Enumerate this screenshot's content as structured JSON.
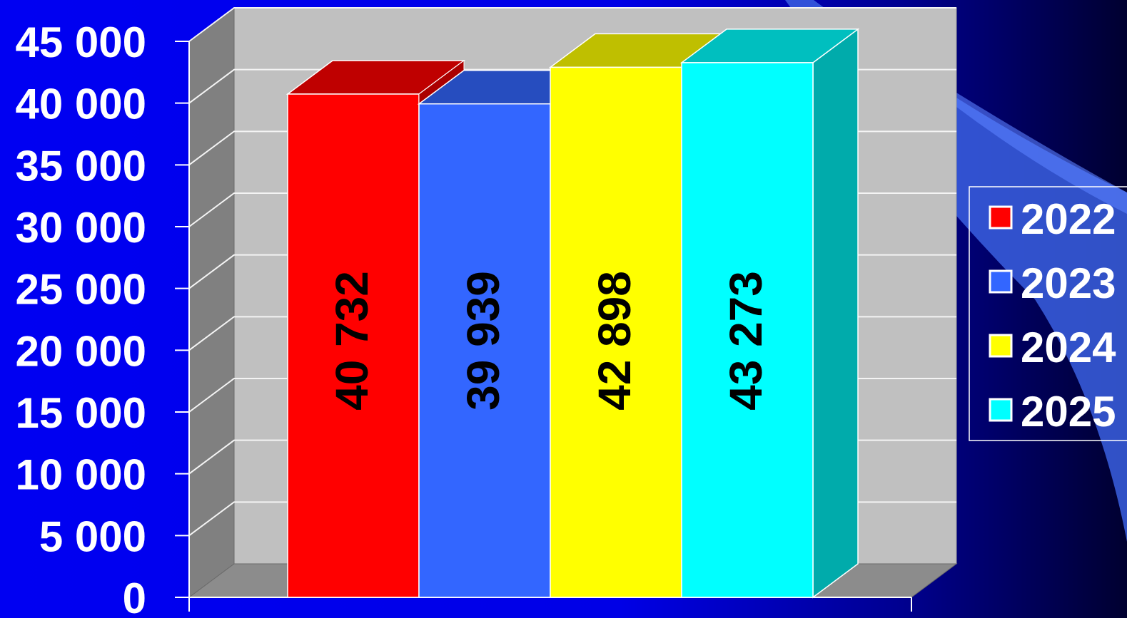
{
  "chart_data": {
    "type": "bar",
    "title": "",
    "xlabel": "",
    "ylabel": "",
    "ylim": [
      0,
      45000
    ],
    "yticks": [
      "0",
      "5 000",
      "10 000",
      "15 000",
      "20 000",
      "25 000",
      "30 000",
      "35 000",
      "40 000",
      "45 000"
    ],
    "grid": true,
    "legend_position": "right",
    "series": [
      {
        "name": "2022",
        "value": 40732,
        "label": "40 732",
        "color": "#ff0000"
      },
      {
        "name": "2023",
        "value": 39939,
        "label": "39 939",
        "color": "#3366ff"
      },
      {
        "name": "2024",
        "value": 42898,
        "label": "42 898",
        "color": "#ffff00"
      },
      {
        "name": "2025",
        "value": 43273,
        "label": "43 273",
        "color": "#00ffff"
      }
    ]
  }
}
